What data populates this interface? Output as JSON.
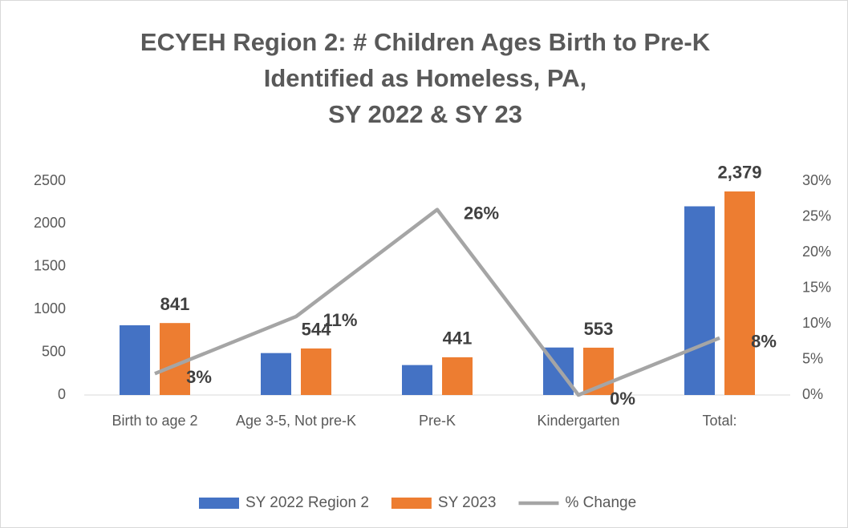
{
  "chart_data": {
    "type": "bar_line",
    "title": [
      "ECYEH Region 2: # Children Ages Birth to Pre-K",
      "Identified as Homeless, PA,",
      "SY 2022 & SY 23"
    ],
    "categories": [
      "Birth to age 2",
      "Age 3-5, Not pre-K",
      "Pre-K",
      "Kindergarten",
      "Total:"
    ],
    "series": [
      {
        "name": "SY 2022 Region 2",
        "color": "#4472c4",
        "type": "bar",
        "values": [
          815,
          490,
          350,
          555,
          2205
        ]
      },
      {
        "name": "SY 2023",
        "color": "#ed7d31",
        "type": "bar",
        "values": [
          841,
          544,
          441,
          553,
          2379
        ],
        "value_labels": [
          "841",
          "544",
          "441",
          "553",
          "2,379"
        ]
      },
      {
        "name": "% Change",
        "color": "#a5a5a5",
        "type": "line",
        "axis": "y2",
        "values": [
          3,
          11,
          26,
          0,
          8
        ],
        "value_labels": [
          "3%",
          "11%",
          "26%",
          "0%",
          "8%"
        ]
      }
    ],
    "ylim": [
      0,
      2500
    ],
    "yticks": [
      0,
      500,
      1000,
      1500,
      2000,
      2500
    ],
    "y2lim": [
      0,
      30
    ],
    "y2ticks": [
      {
        "value": 0,
        "label": "0%"
      },
      {
        "value": 5,
        "label": "5%"
      },
      {
        "value": 10,
        "label": "10%"
      },
      {
        "value": 15,
        "label": "15%"
      },
      {
        "value": 20,
        "label": "20%"
      },
      {
        "value": 25,
        "label": "25%"
      },
      {
        "value": 30,
        "label": "30%"
      }
    ],
    "legend": "bottom"
  }
}
